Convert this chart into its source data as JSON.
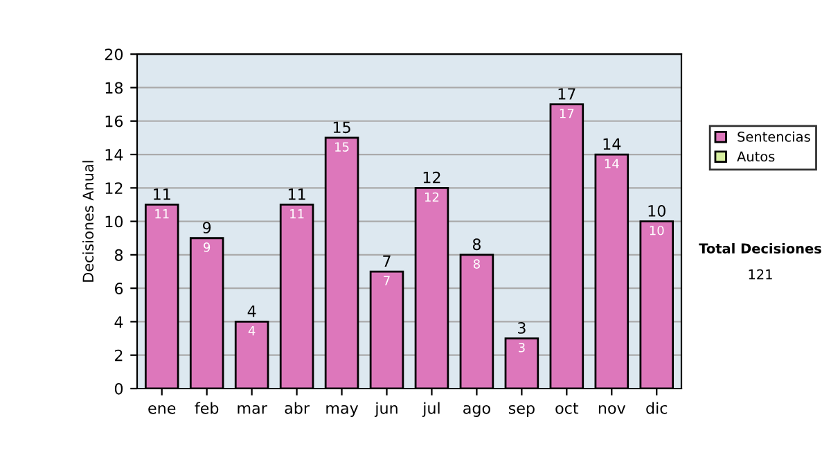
{
  "chart_data": {
    "type": "bar",
    "stacked": true,
    "ylabel": "Decisiones Anual",
    "categories": [
      "ene",
      "feb",
      "mar",
      "abr",
      "may",
      "jun",
      "jul",
      "ago",
      "sep",
      "oct",
      "nov",
      "dic"
    ],
    "series": [
      {
        "name": "Sentencias",
        "color": "#dd77bb",
        "values": [
          11,
          9,
          4,
          11,
          15,
          7,
          12,
          8,
          3,
          17,
          14,
          10
        ]
      },
      {
        "name": "Autos",
        "color": "#d8f0a0",
        "values": [
          null,
          null,
          null,
          null,
          null,
          null,
          null,
          null,
          null,
          null,
          null,
          null
        ]
      }
    ],
    "totals": [
      "11",
      "9",
      "4",
      "11",
      "15",
      "7",
      "12",
      "8",
      "3",
      "17",
      "14",
      "10"
    ],
    "data_labels": true,
    "ylim": [
      0,
      20
    ],
    "yticks": [
      0,
      2,
      4,
      6,
      8,
      10,
      12,
      14,
      16,
      18,
      20
    ],
    "grid": "y",
    "legend": "right",
    "annotations": [
      "Total Decisiones",
      "121"
    ]
  }
}
